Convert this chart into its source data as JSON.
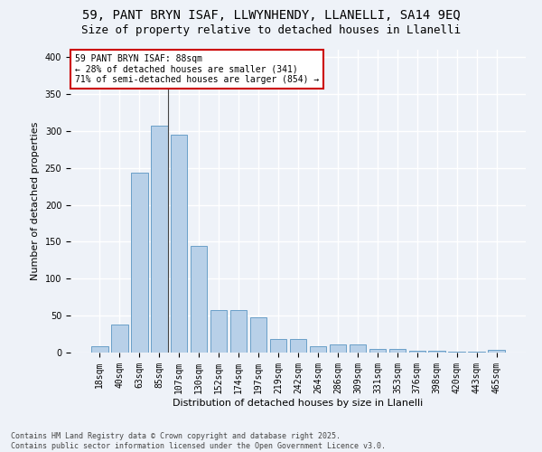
{
  "title_line1": "59, PANT BRYN ISAF, LLWYNHENDY, LLANELLI, SA14 9EQ",
  "title_line2": "Size of property relative to detached houses in Llanelli",
  "xlabel": "Distribution of detached houses by size in Llanelli",
  "ylabel": "Number of detached properties",
  "categories": [
    "18sqm",
    "40sqm",
    "63sqm",
    "85sqm",
    "107sqm",
    "130sqm",
    "152sqm",
    "174sqm",
    "197sqm",
    "219sqm",
    "242sqm",
    "264sqm",
    "286sqm",
    "309sqm",
    "331sqm",
    "353sqm",
    "376sqm",
    "398sqm",
    "420sqm",
    "443sqm",
    "465sqm"
  ],
  "values": [
    8,
    38,
    243,
    307,
    295,
    145,
    57,
    57,
    48,
    18,
    18,
    9,
    11,
    11,
    5,
    5,
    3,
    3,
    1,
    1,
    4
  ],
  "bar_color": "#b8d0e8",
  "bar_edge_color": "#6a9fc8",
  "bg_color": "#eef2f8",
  "grid_color": "#ffffff",
  "annotation_text": "59 PANT BRYN ISAF: 88sqm\n← 28% of detached houses are smaller (341)\n71% of semi-detached houses are larger (854) →",
  "annotation_box_color": "#ffffff",
  "annotation_box_edge": "#cc0000",
  "ylim": [
    0,
    410
  ],
  "yticks": [
    0,
    50,
    100,
    150,
    200,
    250,
    300,
    350,
    400
  ],
  "footnote": "Contains HM Land Registry data © Crown copyright and database right 2025.\nContains public sector information licensed under the Open Government Licence v3.0.",
  "title_fontsize": 10,
  "subtitle_fontsize": 9,
  "label_fontsize": 8,
  "tick_fontsize": 7,
  "annotation_fontsize": 7,
  "footnote_fontsize": 6
}
